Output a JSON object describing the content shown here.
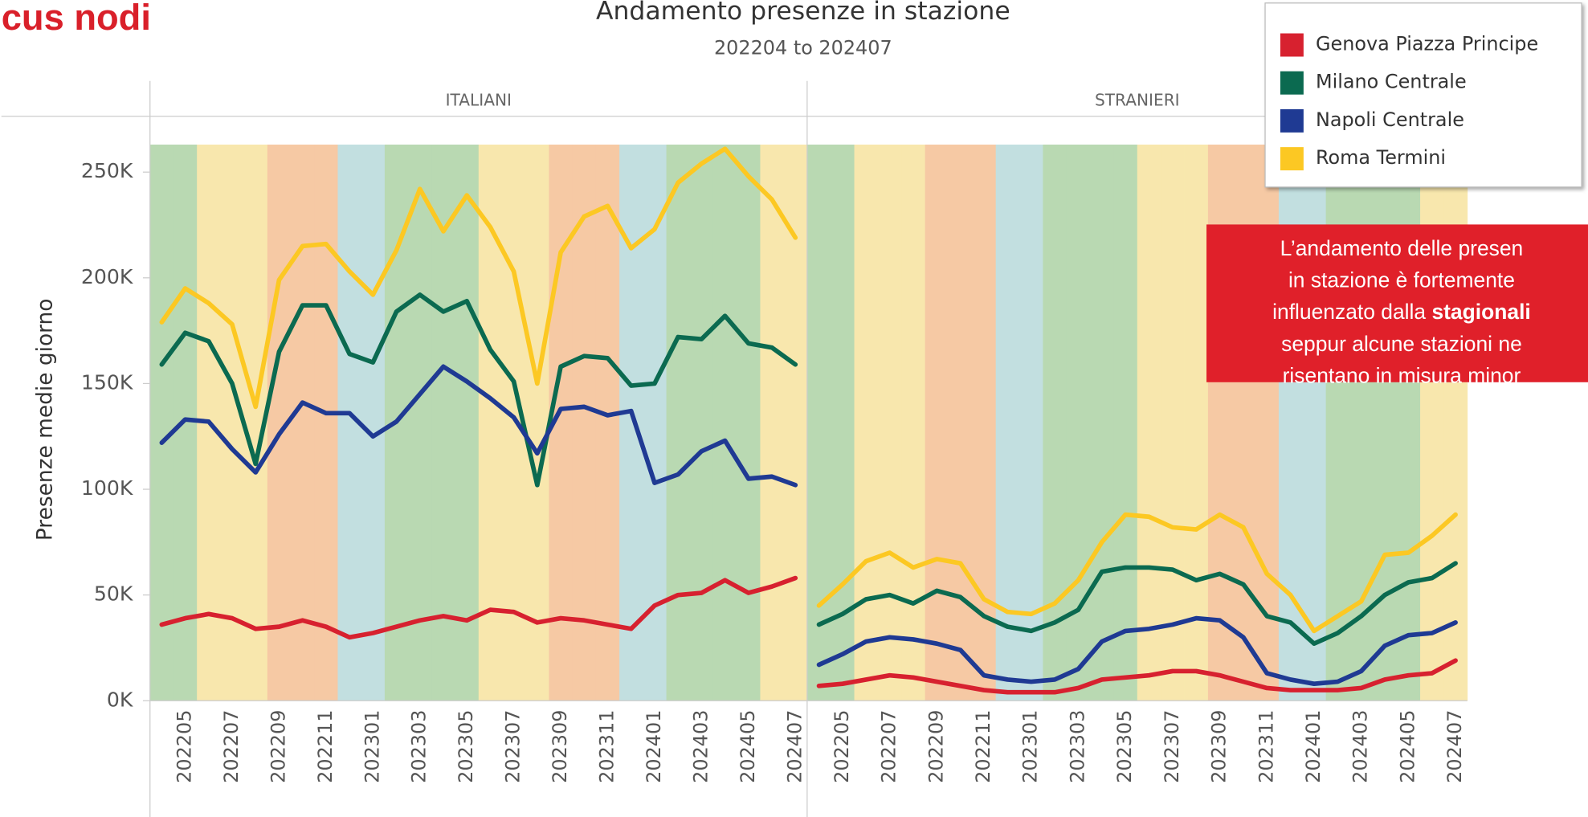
{
  "header": "cus nodi",
  "annotation": {
    "lines": [
      [
        "L’andamento delle presen"
      ],
      [
        "in stazione è fortemente"
      ],
      [
        "influenzato dalla ",
        "stagionali"
      ],
      [
        "seppur alcune stazioni ne"
      ],
      [
        "risentano in misura minor"
      ]
    ]
  },
  "chart_data": [
    {
      "type": "line",
      "title": "Andamento presenze in stazione",
      "subtitle": "202204 to 202407",
      "panel": "ITALIANI",
      "y_label": "Presenze medie giorno",
      "categories": [
        null,
        "202205",
        null,
        "202207",
        null,
        "202209",
        null,
        "202211",
        null,
        "202301",
        null,
        "202303",
        null,
        "202305",
        null,
        "202307",
        null,
        "202309",
        null,
        "202311",
        null,
        "202401",
        null,
        "202403",
        null,
        "202405",
        null,
        "202407"
      ],
      "ylim": [
        0,
        263
      ],
      "yticks": [
        {
          "value": 0,
          "label": "0K"
        },
        {
          "value": 50,
          "label": "50K"
        },
        {
          "value": 100,
          "label": "100K"
        },
        {
          "value": 150,
          "label": "150K"
        },
        {
          "value": 200,
          "label": "200K"
        },
        {
          "value": 250,
          "label": "250K"
        }
      ],
      "series": [
        {
          "name": "Genova Piazza Principe",
          "color": "#d7212f",
          "values": [
            36,
            39,
            41,
            39,
            34,
            35,
            38,
            35,
            30,
            32,
            35,
            38,
            40,
            38,
            43,
            42,
            37,
            39,
            38,
            36,
            34,
            45,
            50,
            51,
            57,
            51,
            54,
            58
          ]
        },
        {
          "name": "Milano Centrale",
          "color": "#0b6a50",
          "values": [
            159,
            174,
            170,
            150,
            112,
            165,
            187,
            187,
            164,
            160,
            184,
            192,
            184,
            189,
            166,
            151,
            102,
            158,
            163,
            162,
            149,
            150,
            172,
            171,
            182,
            169,
            167,
            159
          ]
        },
        {
          "name": "Napoli Centrale",
          "color": "#1f3a93",
          "values": [
            122,
            133,
            132,
            119,
            108,
            126,
            141,
            136,
            136,
            125,
            132,
            145,
            158,
            151,
            143,
            134,
            117,
            138,
            139,
            135,
            137,
            103,
            107,
            118,
            123,
            105,
            106,
            102
          ]
        },
        {
          "name": "Roma Termini",
          "color": "#fcc823",
          "values": [
            179,
            195,
            188,
            178,
            139,
            199,
            215,
            216,
            203,
            192,
            213,
            242,
            222,
            239,
            224,
            203,
            150,
            212,
            229,
            234,
            214,
            223,
            245,
            254,
            261,
            248,
            237,
            219
          ]
        }
      ]
    },
    {
      "type": "line",
      "panel": "STRANIERI",
      "categories": [
        null,
        "202205",
        null,
        "202207",
        null,
        "202209",
        null,
        "202211",
        null,
        "202301",
        null,
        "202303",
        null,
        "202305",
        null,
        "202307",
        null,
        "202309",
        null,
        "202311",
        null,
        "202401",
        null,
        "202403",
        null,
        "202405",
        null,
        "202407"
      ],
      "ylim": [
        0,
        263
      ],
      "series": [
        {
          "name": "Genova Piazza Principe",
          "color": "#d7212f",
          "values": [
            7,
            8,
            10,
            12,
            11,
            9,
            7,
            5,
            4,
            4,
            4,
            6,
            10,
            11,
            12,
            14,
            14,
            12,
            9,
            6,
            5,
            5,
            5,
            6,
            10,
            12,
            13,
            19
          ]
        },
        {
          "name": "Milano Centrale",
          "color": "#0b6a50",
          "values": [
            36,
            41,
            48,
            50,
            46,
            52,
            49,
            40,
            35,
            33,
            37,
            43,
            61,
            63,
            63,
            62,
            57,
            60,
            55,
            40,
            37,
            27,
            32,
            40,
            50,
            56,
            58,
            65
          ]
        },
        {
          "name": "Napoli Centrale",
          "color": "#1f3a93",
          "values": [
            17,
            22,
            28,
            30,
            29,
            27,
            24,
            12,
            10,
            9,
            10,
            15,
            28,
            33,
            34,
            36,
            39,
            38,
            30,
            13,
            10,
            8,
            9,
            14,
            26,
            31,
            32,
            37
          ]
        },
        {
          "name": "Roma Termini",
          "color": "#fcc823",
          "values": [
            45,
            55,
            66,
            70,
            63,
            67,
            65,
            48,
            42,
            41,
            46,
            57,
            75,
            88,
            87,
            82,
            81,
            88,
            82,
            60,
            50,
            33,
            40,
            47,
            69,
            70,
            78,
            88
          ]
        }
      ]
    }
  ]
}
